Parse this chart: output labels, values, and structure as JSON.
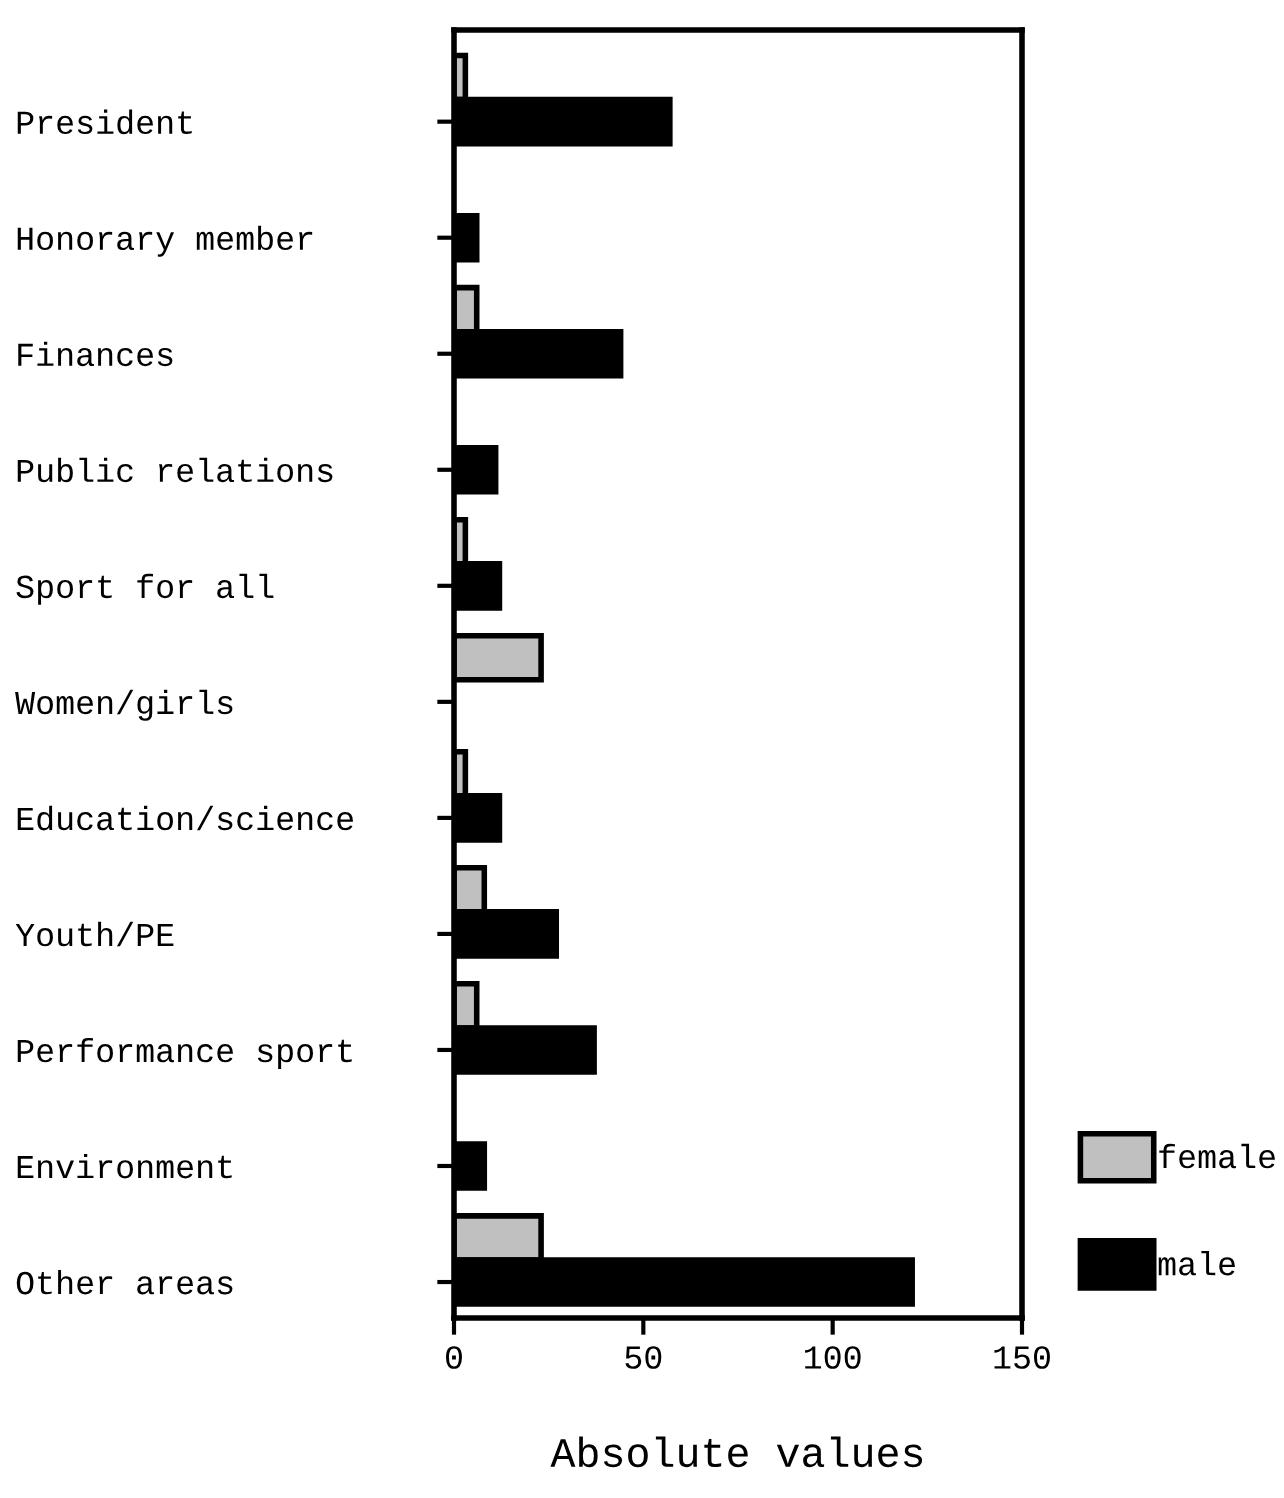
{
  "chart_data": {
    "type": "bar",
    "orientation": "horizontal",
    "xlabel": "Absolute values",
    "categories": [
      "President",
      "Honorary member",
      "Finances",
      "Public relations",
      "Sport for all",
      "Women/girls",
      "Education/science",
      "Youth/PE",
      "Performance sport",
      "Environment",
      "Other areas"
    ],
    "series": [
      {
        "name": "female",
        "color": "#c0c0c0",
        "values": [
          3,
          null,
          6,
          null,
          3,
          23,
          3,
          8,
          6,
          null,
          23
        ]
      },
      {
        "name": "male",
        "color": "#000000",
        "values": [
          57,
          6,
          44,
          11,
          12,
          null,
          12,
          27,
          37,
          8,
          121
        ]
      }
    ],
    "xlim": [
      0,
      150
    ],
    "xticks": [
      0,
      50,
      100,
      150
    ],
    "grid": false,
    "legend": "bottom right"
  }
}
